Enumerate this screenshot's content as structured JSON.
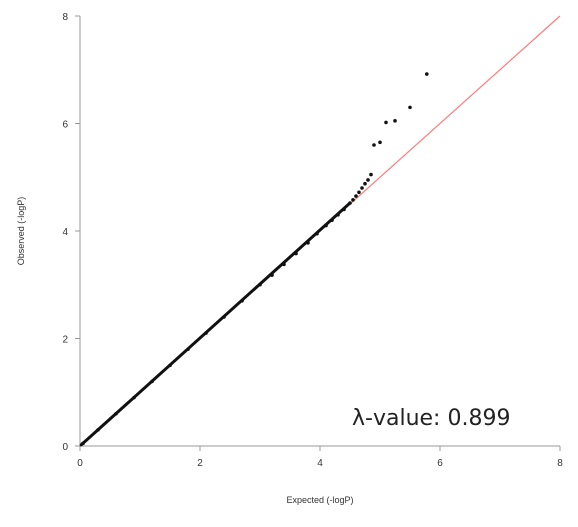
{
  "chart_data": {
    "type": "scatter",
    "title": "",
    "xlabel": "Expected (-logP)",
    "ylabel": "Observed (-logP)",
    "xlim": [
      0,
      8
    ],
    "ylim": [
      0,
      8
    ],
    "x_ticks": [
      "0",
      "2",
      "4",
      "6",
      "8"
    ],
    "y_ticks": [
      "0",
      "2",
      "4",
      "6",
      "8"
    ],
    "grid": false,
    "annotation": "λ-value: 0.899",
    "reference_line": {
      "x": [
        0,
        8
      ],
      "y": [
        0,
        8
      ],
      "color": "#ff7b7b"
    },
    "point_color": "#111111",
    "series": [
      {
        "x": [
          0.05,
          0.3,
          0.6,
          0.9,
          1.2,
          1.5,
          1.8,
          2.1,
          2.4,
          2.7,
          3.0,
          3.2,
          3.4,
          3.6,
          3.8,
          3.95,
          4.1,
          4.2,
          4.3,
          4.4,
          4.5,
          4.55,
          4.6,
          4.65,
          4.7,
          4.75,
          4.8,
          4.85,
          4.9,
          5.0,
          5.1,
          5.25,
          5.5,
          5.78
        ],
        "y": [
          0.05,
          0.3,
          0.6,
          0.9,
          1.2,
          1.5,
          1.8,
          2.1,
          2.4,
          2.7,
          3.0,
          3.18,
          3.38,
          3.58,
          3.78,
          3.95,
          4.1,
          4.2,
          4.3,
          4.4,
          4.52,
          4.58,
          4.65,
          4.72,
          4.8,
          4.88,
          4.95,
          5.05,
          5.6,
          5.65,
          6.02,
          6.05,
          6.3,
          6.92
        ]
      }
    ]
  }
}
